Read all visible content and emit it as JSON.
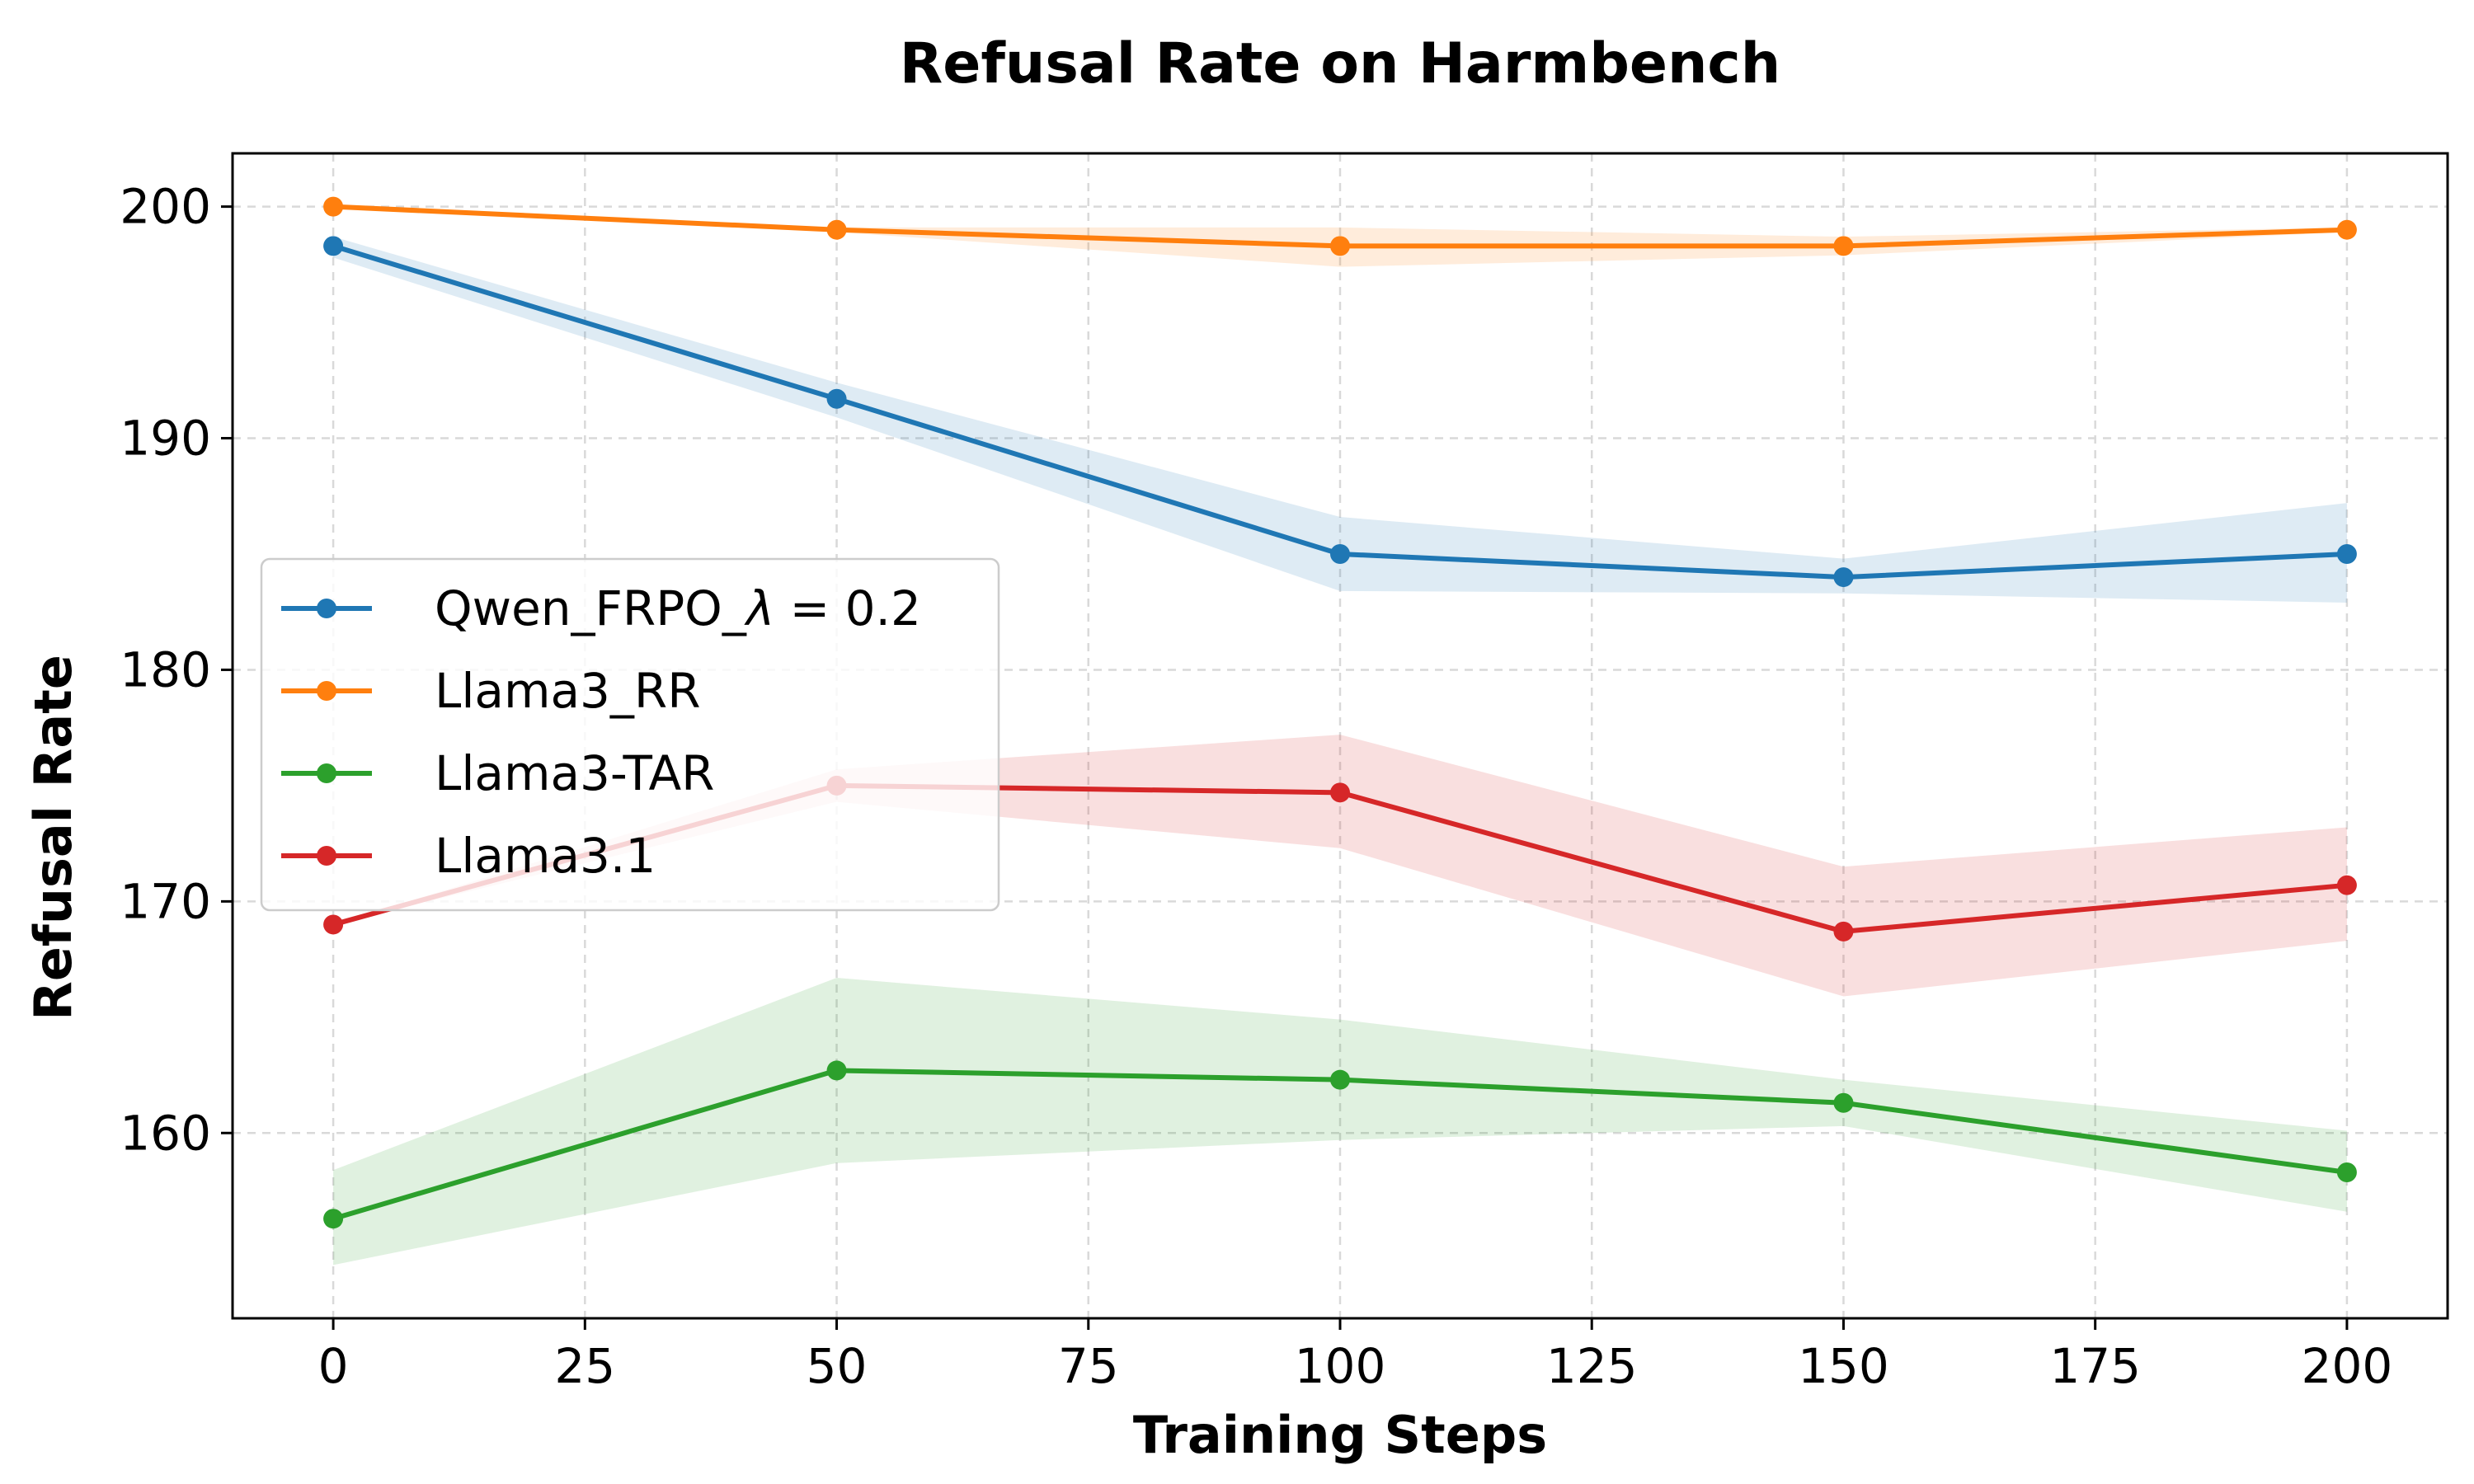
{
  "chart_data": {
    "type": "line",
    "title": "Refusal Rate on Harmbench",
    "xlabel": "Training Steps",
    "ylabel": "Refusal Rate",
    "x": [
      0,
      50,
      100,
      150,
      200
    ],
    "xlim": [
      -10,
      210
    ],
    "ylim": [
      152,
      202.3
    ],
    "xticks": [
      "0",
      "25",
      "50",
      "75",
      "100",
      "125",
      "150",
      "175",
      "200"
    ],
    "xtick_values": [
      0,
      25,
      50,
      75,
      100,
      125,
      150,
      175,
      200
    ],
    "yticks": [
      "160",
      "170",
      "180",
      "190",
      "200"
    ],
    "ytick_values": [
      160,
      170,
      180,
      190,
      200
    ],
    "grid": true,
    "legend_position": "center-left",
    "series": [
      {
        "name": "Qwen_FRPO_",
        "name_symbol": "λ",
        "name_suffix": " = 0.2",
        "color": "#1f77b4",
        "values": [
          198.3,
          191.7,
          185.0,
          184.0,
          185.0
        ],
        "lower": [
          197.8,
          190.9,
          183.4,
          183.3,
          182.9
        ],
        "upper": [
          198.7,
          192.4,
          186.6,
          184.8,
          187.2
        ]
      },
      {
        "name": "Llama3_RR",
        "color": "#ff7f0e",
        "values": [
          200.0,
          199.0,
          198.3,
          198.3,
          199.0
        ],
        "lower": [
          200.0,
          198.9,
          197.4,
          197.9,
          198.9
        ],
        "upper": [
          200.0,
          199.1,
          199.1,
          198.7,
          199.1
        ]
      },
      {
        "name": "Llama3-TAR",
        "color": "#2ca02c",
        "values": [
          156.3,
          162.7,
          162.3,
          161.3,
          158.3
        ],
        "lower": [
          154.3,
          158.7,
          159.7,
          160.3,
          156.6
        ],
        "upper": [
          158.4,
          166.7,
          164.9,
          162.3,
          160.1
        ]
      },
      {
        "name": "Llama3.1",
        "color": "#d62728",
        "values": [
          169.0,
          175.0,
          174.7,
          168.7,
          170.7
        ],
        "lower": [
          169.0,
          174.3,
          172.3,
          165.9,
          168.3
        ],
        "upper": [
          169.0,
          175.7,
          177.2,
          171.5,
          173.2
        ]
      }
    ]
  }
}
